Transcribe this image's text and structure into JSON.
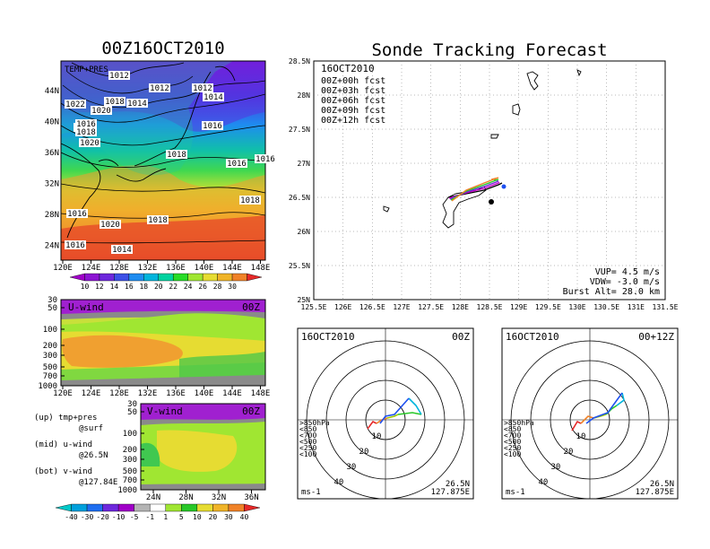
{
  "titles": {
    "left": "00Z16OCT2010",
    "right": "Sonde Tracking Forecast"
  },
  "colors": {
    "purple": "#a000c8",
    "violet": "#6e28dc",
    "blue": "#1e6ef0",
    "cyan": "#00b4dc",
    "teal": "#00d2a0",
    "green": "#28dc28",
    "yellowgreen": "#a0e632",
    "yellow": "#e6dc32",
    "gold": "#f0b428",
    "orange": "#f08228",
    "red": "#e62828",
    "gray": "#999999"
  },
  "temp_map": {
    "label": "TEMP+PRES",
    "lon_ticks": [
      "120E",
      "124E",
      "128E",
      "132E",
      "136E",
      "140E",
      "144E",
      "148E"
    ],
    "lat_ticks": [
      "44N",
      "40N",
      "36N",
      "32N",
      "28N",
      "24N"
    ],
    "isobars": [
      "1012",
      "1012",
      "1012",
      "1014",
      "1022",
      "1020",
      "1018",
      "1014",
      "1018",
      "1016",
      "1018",
      "1020",
      "1016",
      "1016",
      "1016",
      "1018",
      "1018",
      "1020",
      "1016",
      "1018",
      "1014",
      "1016"
    ],
    "colorbar": [
      "10",
      "12",
      "14",
      "16",
      "18",
      "20",
      "22",
      "24",
      "26",
      "28",
      "30"
    ]
  },
  "uwind": {
    "label": "U-wind",
    "time": "00Z",
    "lev_ticks": [
      "30",
      "50",
      "100",
      "200",
      "300",
      "500",
      "700",
      "1000"
    ],
    "lon_ticks": [
      "120E",
      "124E",
      "128E",
      "132E",
      "136E",
      "140E",
      "144E",
      "148E"
    ]
  },
  "vwind": {
    "label": "V-wind",
    "time": "00Z",
    "lev_ticks": [
      "30",
      "50",
      "100",
      "200",
      "300",
      "500",
      "700",
      "1000"
    ],
    "lat_ticks": [
      "24N",
      "28N",
      "32N",
      "36N"
    ],
    "colorbar": [
      "-40",
      "-30",
      "-20",
      "-10",
      "-5",
      "-1",
      "1",
      "5",
      "10",
      "20",
      "30",
      "40"
    ]
  },
  "notes": [
    {
      "a": "(up) tmp+pres",
      "b": "@surf"
    },
    {
      "a": "(mid) u-wind",
      "b": "@26.5N"
    },
    {
      "a": "(bot) v-wind",
      "b": "@127.84E"
    }
  ],
  "track_map": {
    "date": "16OCT2010",
    "legend": [
      "00Z+00h fcst",
      "00Z+03h fcst",
      "00Z+06h fcst",
      "00Z+09h fcst",
      "00Z+12h fcst"
    ],
    "legend_colors": [
      "#000000",
      "#c800c8",
      "#6e28dc",
      "#28c828",
      "#f08228"
    ],
    "lat_ticks": [
      "28.5N",
      "28N",
      "27.5N",
      "27N",
      "26.5N",
      "26N",
      "25.5N",
      "25N"
    ],
    "lon_ticks": [
      "125.5E",
      "126E",
      "126.5E",
      "127E",
      "127.5E",
      "128E",
      "128.5E",
      "129E",
      "129.5E",
      "130E",
      "130.5E",
      "131E",
      "131.5E"
    ],
    "vup": "VUP=  4.5 m/s",
    "vdw": "VDW= -3.0 m/s",
    "burst": "Burst Alt= 28.0 km"
  },
  "hodo": [
    {
      "date": "16OCT2010",
      "time": "00Z",
      "lat": "26.5N",
      "lon": "127.875E",
      "unit": "ms-1",
      "rings": [
        "10",
        "20",
        "30",
        "40"
      ],
      "levels": [
        ">850hPa",
        "<850",
        "<700",
        "<500",
        "<250",
        "<100"
      ],
      "level_colors": [
        "#e62828",
        "#f08228",
        "#a0c800",
        "#28c828",
        "#00b4dc",
        "#1e50f0"
      ]
    },
    {
      "date": "16OCT2010",
      "time": "00+12Z",
      "lat": "26.5N",
      "lon": "127.875E",
      "unit": "ms-1",
      "rings": [
        "10",
        "20",
        "30",
        "40"
      ],
      "levels": [
        ">850hPa",
        "<850",
        "<700",
        "<500",
        "<250",
        "<100"
      ],
      "level_colors": [
        "#e62828",
        "#f08228",
        "#a0c800",
        "#28c828",
        "#00b4dc",
        "#1e50f0"
      ]
    }
  ]
}
